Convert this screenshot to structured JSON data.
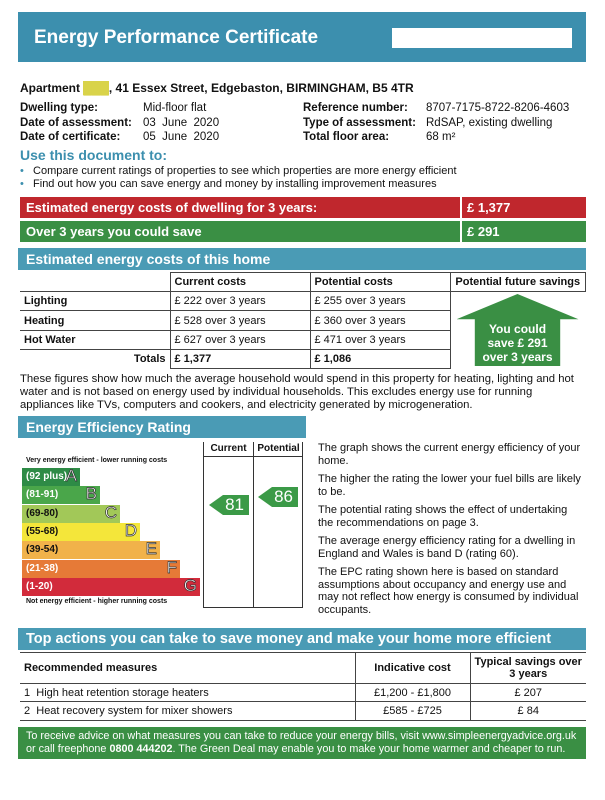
{
  "header": {
    "title": "Energy Performance Certificate"
  },
  "address": {
    "prefix": "Apartment",
    "redacted": "███",
    "rest": ", 41 Essex Street, Edgebaston, BIRMINGHAM, B5 4TR"
  },
  "details": {
    "left": [
      {
        "label": "Dwelling type:",
        "value": "Mid-floor flat"
      },
      {
        "label": "Date of assessment:",
        "value": "03  June  2020"
      },
      {
        "label": "Date of certificate:",
        "value": "05  June  2020"
      }
    ],
    "right": [
      {
        "label": "Reference number:",
        "value": "8707-7175-8722-8206-4603"
      },
      {
        "label": "Type of assessment:",
        "value": "RdSAP, existing dwelling"
      },
      {
        "label": "Total floor area:",
        "value": "68 m²"
      }
    ]
  },
  "use": {
    "title": "Use this document to:",
    "bullets": [
      "Compare current ratings of properties to see which properties are more energy efficient",
      "Find out how you can save energy and money by installing improvement measures"
    ]
  },
  "summary": {
    "cost_label": "Estimated energy costs of dwelling for 3 years:",
    "cost_value": "£ 1,377",
    "save_label": "Over 3 years you could save",
    "save_value": "£ 291"
  },
  "costs": {
    "title": "Estimated energy costs of this home",
    "headers": [
      "",
      "Current costs",
      "Potential costs",
      "Potential future savings"
    ],
    "rows": [
      {
        "name": "Lighting",
        "current": "£ 222 over 3 years",
        "potential": "£ 255 over 3 years"
      },
      {
        "name": "Heating",
        "current": "£ 528 over 3 years",
        "potential": "£ 360 over 3 years"
      },
      {
        "name": "Hot Water",
        "current": "£ 627 over 3 years",
        "potential": "£ 471 over 3 years"
      }
    ],
    "totals": {
      "label": "Totals",
      "current": "£ 1,377",
      "potential": "£ 1,086"
    },
    "savings": [
      "You could",
      "save £ 291",
      "over 3 years"
    ],
    "note": "These figures show how much the average household would spend in this property for heating, lighting and hot water and is not based on energy used by individual households. This excludes energy use for running appliances like TVs, computers and cookers, and electricity generated by microgeneration."
  },
  "rating": {
    "title": "Energy Efficiency Rating",
    "col_current": "Current",
    "col_potential": "Potential",
    "top_note": "Very energy efficient - lower running costs",
    "bottom_note": "Not energy efficient - higher running costs",
    "bands": [
      {
        "range": "(92 plus)",
        "letter": "A",
        "color": "#2e8b46"
      },
      {
        "range": "(81-91)",
        "letter": "B",
        "color": "#4aa64a"
      },
      {
        "range": "(69-80)",
        "letter": "C",
        "color": "#a2c858"
      },
      {
        "range": "(55-68)",
        "letter": "D",
        "color": "#f4e63a"
      },
      {
        "range": "(39-54)",
        "letter": "E",
        "color": "#f1b24a"
      },
      {
        "range": "(21-38)",
        "letter": "F",
        "color": "#e67a37"
      },
      {
        "range": "(1-20)",
        "letter": "G",
        "color": "#d22b3b"
      }
    ],
    "current": "81",
    "potential": "86",
    "text": [
      "The graph shows the current energy efficiency of your home.",
      "The higher the rating the lower your fuel bills are likely to be.",
      "The potential rating shows the effect of undertaking the recommendations on page 3.",
      "The average energy efficiency rating for a dwelling in England and Wales is band D (rating 60).",
      "The EPC rating shown here is based on standard assumptions about occupancy and energy use and may not reflect how energy is consumed by individual occupants."
    ]
  },
  "actions": {
    "title": "Top actions you can take to save money and make your home more efficient",
    "headers": [
      "Recommended measures",
      "Indicative cost",
      "Typical savings over 3 years"
    ],
    "rows": [
      {
        "n": "1",
        "measure": "High heat retention storage heaters",
        "cost": "£1,200 - £1,800",
        "saving": "£ 207"
      },
      {
        "n": "2",
        "measure": "Heat recovery system for mixer showers",
        "cost": "£585 - £725",
        "saving": "£ 84"
      }
    ]
  },
  "footer": {
    "text1": "To receive advice on what measures you can take to reduce your energy bills, visit www.simpleenergyadvice.org.uk or call freephone ",
    "phone": "0800 444202",
    "text2": ". The Green Deal may enable you to make your home warmer and cheaper to run."
  },
  "colors": {
    "teal": "#4a9bb5",
    "red": "#c0272d",
    "green": "#3a8f44"
  }
}
